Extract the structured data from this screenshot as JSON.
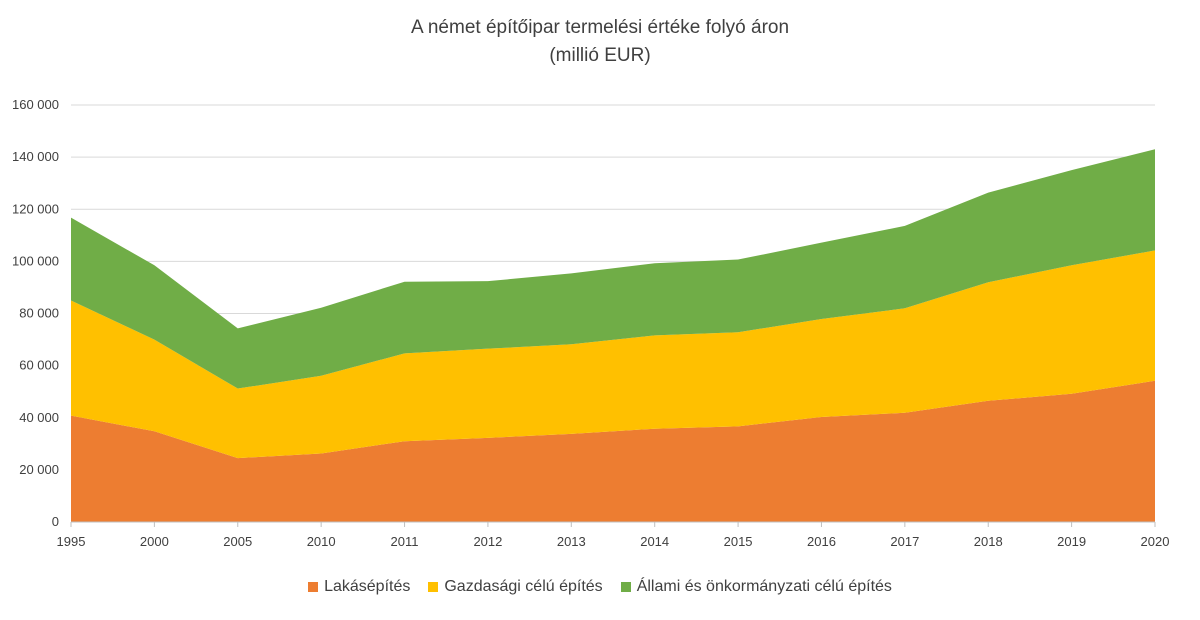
{
  "chart_data": {
    "type": "area",
    "stacked": true,
    "title": "A német építőipar termelési értéke folyó áron",
    "subtitle": "(millió EUR)",
    "categories": [
      "1995",
      "2000",
      "2005",
      "2010",
      "2011",
      "2012",
      "2013",
      "2014",
      "2015",
      "2016",
      "2017",
      "2018",
      "2019",
      "2020"
    ],
    "series": [
      {
        "name": "Lakásépítés",
        "color": "#ED7D31",
        "values": [
          40800,
          34800,
          24500,
          26300,
          31000,
          32300,
          33800,
          35800,
          36700,
          40300,
          41900,
          46500,
          49200,
          54200
        ]
      },
      {
        "name": "Gazdasági célú építés",
        "color": "#FFC000",
        "values": [
          44200,
          35200,
          26700,
          29800,
          33700,
          34200,
          34400,
          35800,
          36100,
          37600,
          40100,
          45500,
          49300,
          50000
        ]
      },
      {
        "name": "Állami és önkormányzati célú építés",
        "color": "#70AD47",
        "values": [
          31800,
          28500,
          23100,
          26100,
          27500,
          25900,
          27200,
          27700,
          27900,
          29300,
          31600,
          34400,
          36500,
          38800
        ]
      }
    ],
    "ylim": [
      0,
      160000
    ],
    "y_ticks": [
      0,
      20000,
      40000,
      60000,
      80000,
      100000,
      120000,
      140000,
      160000
    ],
    "y_tick_labels": [
      "0",
      "20 000",
      "40 000",
      "60 000",
      "80 000",
      "100 000",
      "120 000",
      "140 000",
      "160 000"
    ],
    "grid": true,
    "legend_position": "bottom"
  }
}
